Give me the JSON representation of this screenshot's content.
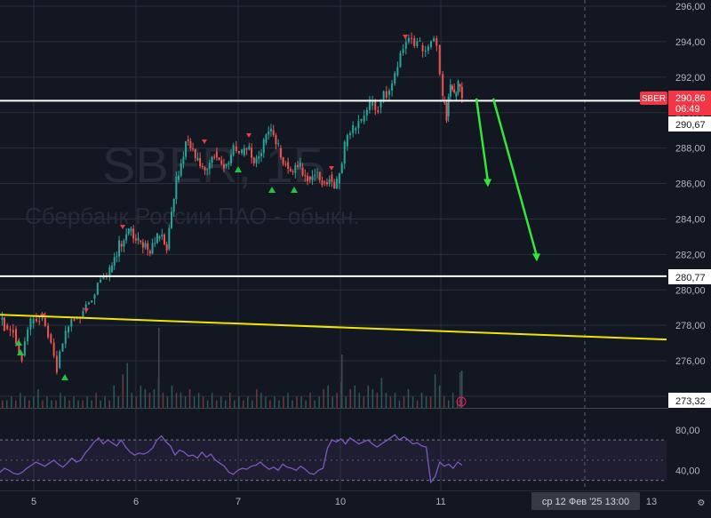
{
  "chart_data": {
    "type": "candlestick",
    "symbol_watermark": "SBER, 1Б",
    "description_watermark": "Сбербанк России ПАО - обыкн.",
    "colors": {
      "background": "#131722",
      "grid": "#2a2e39",
      "up": "#26a69a",
      "down": "#ef5350",
      "trendline": "#f2e600",
      "level_line": "#ffffff",
      "arrow": "#33e63c",
      "rsi_line": "#7e57c2",
      "rsi_band": "#7e57c2",
      "price_badge": "#f23645",
      "axis_text": "#b2b5be"
    },
    "y_axis": {
      "ticks": [
        "296,00",
        "294,00",
        "292,00",
        "290,00",
        "288,00",
        "286,00",
        "284,00",
        "282,00",
        "280,00",
        "278,00",
        "276,00",
        "274,00"
      ],
      "range": [
        272.9,
        296.4
      ]
    },
    "x_axis": {
      "ticks": [
        "5",
        "6",
        "7",
        "10",
        "11",
        "13"
      ],
      "crosshair_label": "ср 12 Фев '25   13:00"
    },
    "price_labels": {
      "symbol": "SBER",
      "last_price": "290,86",
      "countdown": "06:49",
      "level_upper": "290,67",
      "level_lower": "280,77",
      "trend_value": "273,32"
    },
    "levels": [
      290.67,
      280.77
    ],
    "trendline": {
      "from": [
        "5",
        278.6
      ],
      "to": [
        "13",
        277.2
      ]
    },
    "forecast_arrows": [
      {
        "from_price": 290.8,
        "to_price": 285.8
      },
      {
        "from_price": 290.8,
        "to_price": 281.6
      }
    ],
    "price_series": {
      "note_days": [
        "5",
        "6",
        "7",
        "10",
        "11"
      ],
      "close_points": [
        [
          "5",
          278.0
        ],
        [
          "5",
          277.8
        ],
        [
          "5",
          276.3
        ],
        [
          "5",
          278.1
        ],
        [
          "5",
          278.4
        ],
        [
          "5",
          277.5
        ],
        [
          "5",
          275.6
        ],
        [
          "5",
          277.6
        ],
        [
          "5",
          278.4
        ],
        [
          "5",
          278.9
        ],
        [
          "5",
          279.5
        ],
        [
          "5",
          280.6
        ],
        [
          "6",
          281.0
        ],
        [
          "6",
          282.6
        ],
        [
          "6",
          283.3
        ],
        [
          "6",
          282.8
        ],
        [
          "6",
          282.2
        ],
        [
          "6",
          282.9
        ],
        [
          "6",
          282.3
        ],
        [
          "6",
          286.2
        ],
        [
          "6",
          288.5
        ],
        [
          "6",
          287.3
        ],
        [
          "6",
          286.8
        ],
        [
          "6",
          287.8
        ],
        [
          "6",
          287.0
        ],
        [
          "6",
          288.1
        ],
        [
          "7",
          287.6
        ],
        [
          "7",
          288.0
        ],
        [
          "7",
          287.4
        ],
        [
          "7",
          288.3
        ],
        [
          "7",
          289.0
        ],
        [
          "7",
          288.0
        ],
        [
          "7",
          287.2
        ],
        [
          "7",
          286.6
        ],
        [
          "7",
          286.9
        ],
        [
          "7",
          286.4
        ],
        [
          "7",
          286.6
        ],
        [
          "7",
          286.1
        ],
        [
          "7",
          286.5
        ],
        [
          "7",
          286.0
        ],
        [
          "10",
          288.1
        ],
        [
          "10",
          289.0
        ],
        [
          "10",
          289.5
        ],
        [
          "10",
          290.4
        ],
        [
          "10",
          290.3
        ],
        [
          "10",
          291.0
        ],
        [
          "10",
          292.1
        ],
        [
          "10",
          293.6
        ],
        [
          "10",
          294.2
        ],
        [
          "10",
          293.8
        ],
        [
          "10",
          293.7
        ],
        [
          "10",
          293.8
        ],
        [
          "11",
          290.6
        ],
        [
          "11",
          289.8
        ],
        [
          "11",
          291.5
        ],
        [
          "11",
          290.9
        ],
        [
          "11",
          291.6
        ],
        [
          "11",
          290.86
        ]
      ]
    },
    "rsi": {
      "ticks": [
        "80,00",
        "40,00"
      ],
      "range": [
        20,
        100
      ],
      "band": [
        30,
        70
      ],
      "values": [
        38,
        42,
        40,
        37,
        36,
        38,
        42,
        45,
        48,
        46,
        44,
        47,
        50,
        46,
        43,
        47,
        52,
        48,
        50,
        57,
        62,
        68,
        72,
        66,
        70,
        67,
        64,
        70,
        63,
        58,
        55,
        57,
        56,
        58,
        62,
        70,
        74,
        68,
        64,
        55,
        60,
        58,
        54,
        55,
        52,
        58,
        53,
        56,
        50,
        47,
        44,
        38,
        36,
        40,
        42,
        41,
        44,
        45,
        48,
        44,
        41,
        43,
        40,
        46,
        43,
        42,
        40,
        44,
        41,
        37,
        36,
        40,
        42,
        62,
        70,
        68,
        71,
        66,
        72,
        69,
        66,
        68,
        70,
        66,
        63,
        66,
        69,
        72,
        75,
        70,
        73,
        70,
        66,
        67,
        64,
        63,
        28,
        34,
        48,
        44,
        46,
        42,
        48,
        45
      ]
    },
    "volume": {
      "values": [
        2,
        2,
        3,
        2,
        4,
        3,
        2,
        3,
        5,
        2,
        3,
        2,
        2,
        4,
        3,
        2,
        3,
        2,
        2,
        3,
        2,
        4,
        2,
        3,
        2,
        6,
        3,
        9,
        12,
        4,
        3,
        6,
        5,
        4,
        5,
        8,
        4,
        3,
        6,
        4,
        4,
        3,
        5,
        3,
        4,
        3,
        2,
        4,
        2,
        3,
        2,
        4,
        2,
        3,
        2,
        3,
        2,
        5,
        4,
        3,
        2,
        3,
        2,
        3,
        4,
        2,
        3,
        3,
        2,
        4,
        2,
        3,
        5,
        6,
        3,
        4,
        7,
        3,
        5,
        6,
        4,
        3,
        6,
        5,
        4,
        8,
        4,
        3,
        4,
        2,
        3,
        5,
        3,
        2,
        4,
        3,
        3,
        9,
        6,
        3,
        2,
        4,
        2,
        10
      ]
    }
  }
}
